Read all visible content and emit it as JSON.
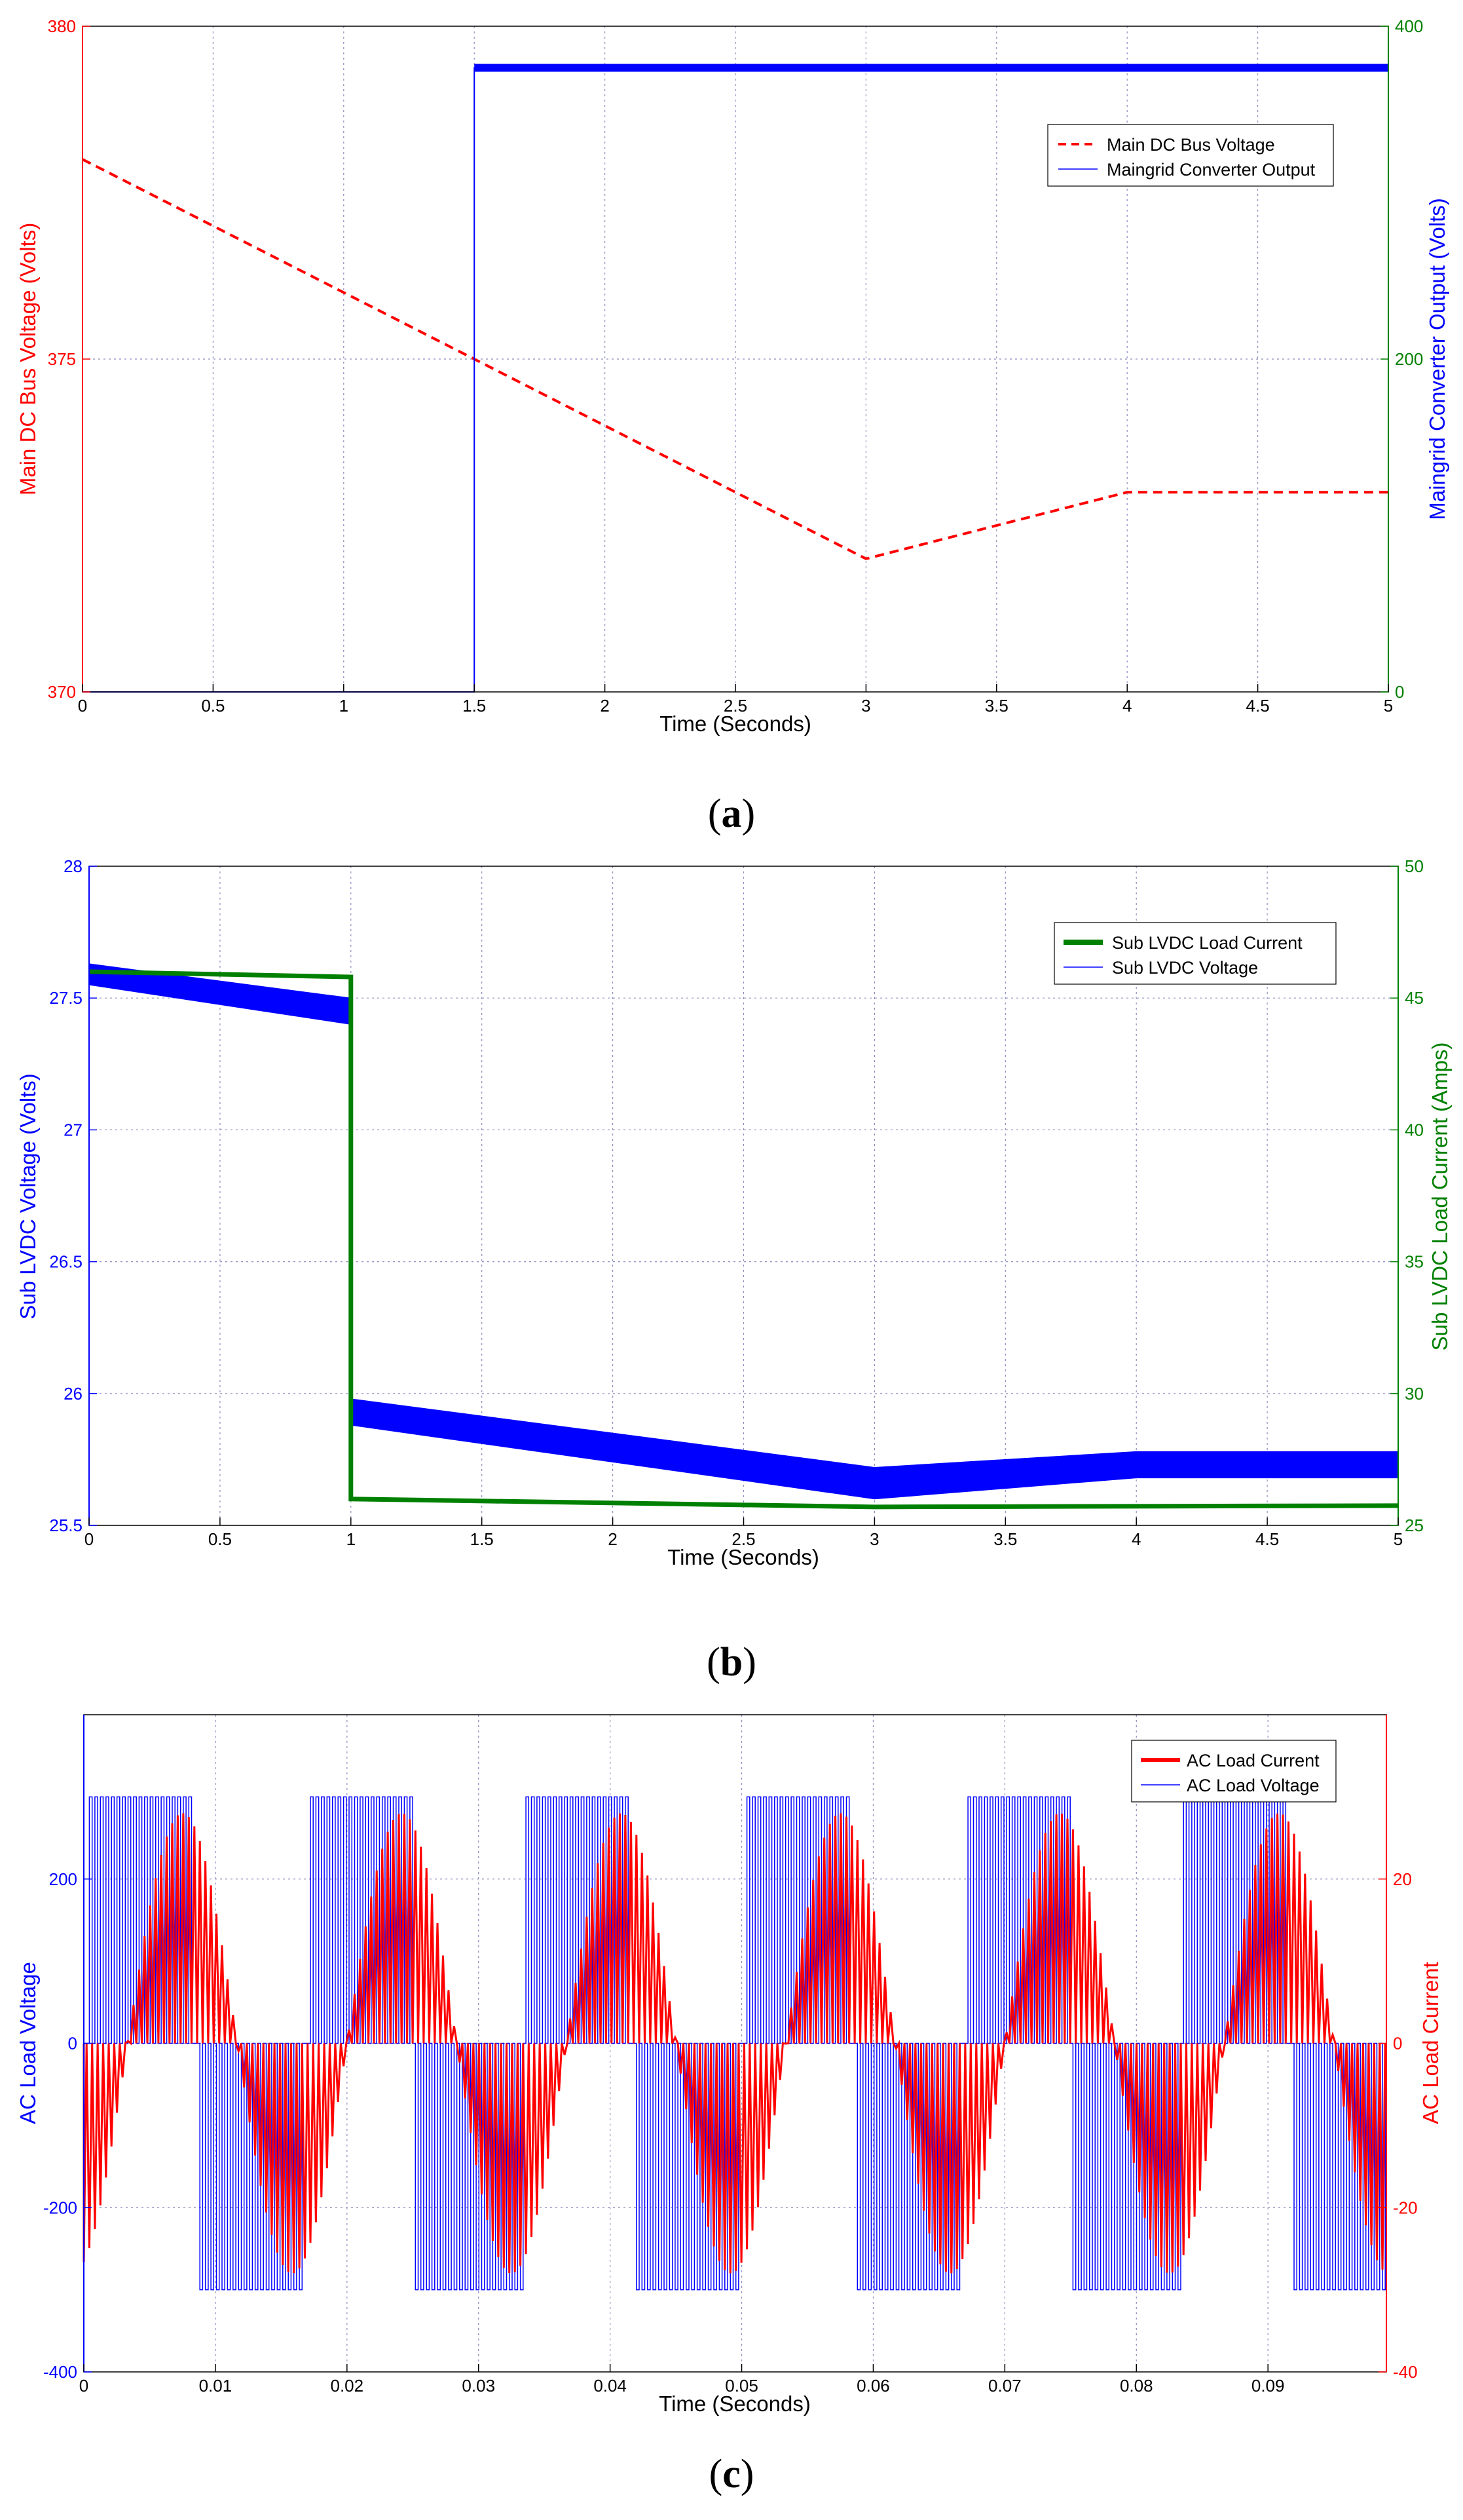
{
  "chart_data": [
    {
      "id": "a",
      "type": "line",
      "caption": {
        "open": "(",
        "letter": "a",
        "close": ")"
      },
      "xlabel": "Time (Seconds)",
      "xlim": [
        0,
        5
      ],
      "xticks": [
        "0",
        "0.5",
        "1",
        "1.5",
        "2",
        "2.5",
        "3",
        "3.5",
        "4",
        "4.5",
        "5"
      ],
      "left_axis": {
        "label": "Main DC Bus Voltage (Volts)",
        "color": "#ff0000",
        "ylim": [
          370,
          380
        ],
        "ticks": [
          "370",
          "375",
          "380"
        ]
      },
      "right_axis": {
        "label": "Maingrid Converter Output (Volts)",
        "color": "#0000ff",
        "tick_color": "#008000",
        "ylim": [
          0,
          400
        ],
        "ticks": [
          "0",
          "200",
          "400"
        ]
      },
      "legend": {
        "position": "top-right",
        "entries": [
          "Main DC Bus Voltage",
          "Maingrid Converter Output"
        ]
      },
      "series": [
        {
          "name": "Main DC Bus Voltage",
          "axis": "left",
          "color": "#ff0000",
          "style": "dashed",
          "x": [
            0,
            3,
            4,
            5
          ],
          "y": [
            378,
            372,
            373,
            373
          ]
        },
        {
          "name": "Maingrid Converter Output",
          "axis": "right",
          "color": "#0000ff",
          "style": "step",
          "x": [
            0,
            1.5,
            1.5,
            5
          ],
          "y": [
            0,
            0,
            375,
            375
          ]
        }
      ]
    },
    {
      "id": "b",
      "type": "line",
      "caption": {
        "open": "(",
        "letter": "b",
        "close": ")"
      },
      "xlabel": "Time (Seconds)",
      "xlim": [
        0,
        5
      ],
      "xticks": [
        "0",
        "0.5",
        "1",
        "1.5",
        "2",
        "2.5",
        "3",
        "3.5",
        "4",
        "4.5",
        "5"
      ],
      "left_axis": {
        "label": "Sub LVDC Voltage (Volts)",
        "color": "#0000ff",
        "ylim": [
          25.5,
          28
        ],
        "ticks": [
          "25.5",
          "26",
          "26.5",
          "27",
          "27.5",
          "28"
        ]
      },
      "right_axis": {
        "label": "Sub LVDC Load Current (Amps)",
        "color": "#008000",
        "ylim": [
          25,
          50
        ],
        "ticks": [
          "25",
          "30",
          "35",
          "40",
          "45",
          "50"
        ]
      },
      "legend": {
        "position": "top-right",
        "entries": [
          "Sub LVDC Load Current",
          "Sub LVDC Voltage"
        ]
      },
      "series": [
        {
          "name": "Sub LVDC Voltage",
          "axis": "left",
          "color": "#0000ff",
          "style": "band",
          "x": [
            0,
            1,
            1,
            3,
            4,
            5
          ],
          "y_upper": [
            27.63,
            27.5,
            25.98,
            25.72,
            25.78,
            25.78
          ],
          "y_lower": [
            27.55,
            27.4,
            25.88,
            25.6,
            25.68,
            25.68
          ]
        },
        {
          "name": "Sub LVDC Load Current",
          "axis": "right",
          "color": "#008000",
          "style": "thick",
          "x": [
            0,
            1,
            1,
            3,
            5
          ],
          "y": [
            46.0,
            45.8,
            26.0,
            25.7,
            25.75
          ]
        }
      ]
    },
    {
      "id": "c",
      "type": "line",
      "caption": {
        "open": "(",
        "letter": "c",
        "close": ")"
      },
      "xlabel": "Time (Seconds)",
      "xlim": [
        0,
        0.099
      ],
      "xticks": [
        "0",
        "0.01",
        "0.02",
        "0.03",
        "0.04",
        "0.05",
        "0.06",
        "0.07",
        "0.08",
        "0.09"
      ],
      "left_axis": {
        "label": "AC Load Voltage",
        "color": "#0000ff",
        "ylim": [
          -400,
          400
        ],
        "ticks": [
          "-400",
          "-200",
          "0",
          "200"
        ]
      },
      "right_axis": {
        "label": "AC Load Current",
        "color": "#ff0000",
        "ylim": [
          -40,
          40
        ],
        "ticks": [
          "-40",
          "-20",
          "0",
          "20"
        ]
      },
      "legend": {
        "position": "top-right",
        "entries": [
          "AC Load Current",
          "AC Load Voltage"
        ]
      },
      "series": [
        {
          "name": "AC Load Voltage",
          "axis": "left",
          "color": "#0000ff",
          "style": "pwm",
          "amplitude": 300,
          "period": 0.01667
        },
        {
          "name": "AC Load Current",
          "axis": "right",
          "color": "#ff0000",
          "style": "pwm-sine",
          "amplitude": 28,
          "period": 0.01667
        }
      ]
    }
  ]
}
